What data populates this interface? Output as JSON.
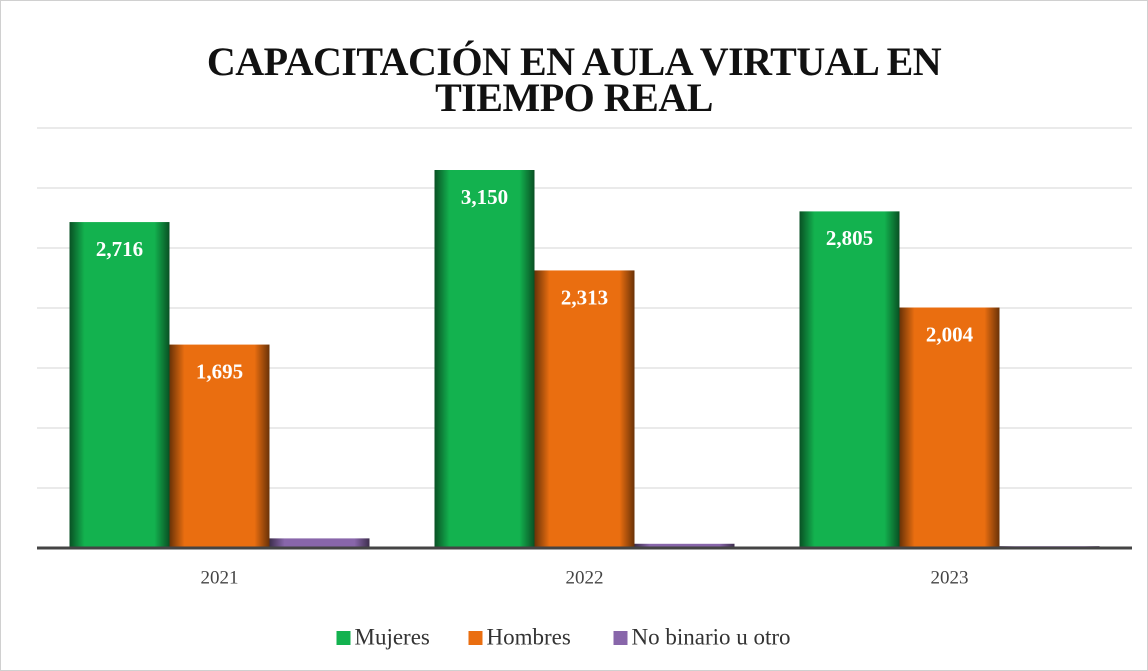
{
  "chart_data": {
    "type": "bar",
    "title": "CAPACITACIÓN EN AULA VIRTUAL EN TIEMPO REAL",
    "categories": [
      "2021",
      "2022",
      "2023"
    ],
    "series": [
      {
        "name": "Mujeres",
        "color": "#13b24f",
        "values": [
          2716,
          3150,
          2805
        ],
        "value_labels": [
          "2,716",
          "3,150",
          "2,805"
        ]
      },
      {
        "name": "Hombres",
        "color": "#ea6e10",
        "values": [
          1695,
          2313,
          2004
        ],
        "value_labels": [
          "1,695",
          "2,313",
          "2,004"
        ]
      },
      {
        "name": "No binario u otro",
        "color": "#8866aa",
        "values": [
          80,
          35,
          15
        ]
      }
    ],
    "ylim": [
      0,
      3500
    ],
    "yticks": [
      0,
      500,
      1000,
      1500,
      2000,
      2500,
      3000,
      3500
    ],
    "grid": true,
    "legend": "bottom"
  }
}
